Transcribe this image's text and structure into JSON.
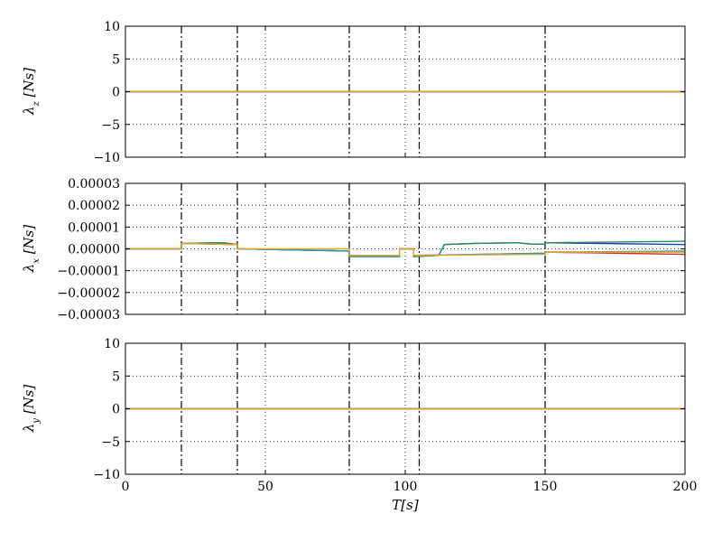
{
  "chart_data": [
    {
      "type": "line",
      "ylabel": "λz [Ns]",
      "ylabel_main": "λ",
      "ylabel_sub": "z",
      "ylabel_unit": "[Ns]",
      "xlim": [
        0,
        200
      ],
      "ylim": [
        -10,
        10
      ],
      "yticks": [
        "10",
        "5",
        "0",
        "−5",
        "−10"
      ],
      "grid": true,
      "event_lines": [
        20,
        40,
        80,
        105,
        150
      ],
      "series": [
        {
          "color": "#1f3fbf",
          "x": [
            0,
            200
          ],
          "y": [
            0,
            0
          ]
        },
        {
          "color": "#2e8b57",
          "x": [
            0,
            200
          ],
          "y": [
            0,
            0
          ]
        },
        {
          "color": "#d62728",
          "x": [
            0,
            200
          ],
          "y": [
            0,
            0
          ]
        },
        {
          "color": "#17a2b8",
          "x": [
            0,
            200
          ],
          "y": [
            0,
            0
          ]
        },
        {
          "color": "#e6a32c",
          "x": [
            0,
            200
          ],
          "y": [
            0,
            0
          ]
        }
      ]
    },
    {
      "type": "line",
      "ylabel": "λx [Ns]",
      "ylabel_main": "λ",
      "ylabel_sub": "x",
      "ylabel_unit": "[Ns]",
      "xlim": [
        0,
        200
      ],
      "ylim": [
        -3e-05,
        3e-05
      ],
      "yticks": [
        "0.00003",
        "0.00002",
        "0.00001",
        "0.00000",
        "−0.00001",
        "−0.00002",
        "−0.00003"
      ],
      "grid": true,
      "event_lines": [
        20,
        40,
        80,
        105,
        150
      ],
      "series": [
        {
          "color": "#1f3fbf",
          "x": [
            0,
            20,
            20,
            35,
            40,
            40,
            80,
            80,
            98,
            98,
            103,
            103,
            112,
            114,
            125,
            140,
            145,
            150,
            150,
            200
          ],
          "y": [
            0,
            0,
            2.5e-06,
            2.8e-06,
            2e-06,
            0,
            -1e-06,
            -3.5e-06,
            -3.5e-06,
            0,
            0,
            -3.5e-06,
            -3e-06,
            2e-06,
            2.5e-06,
            2.8e-06,
            2.2e-06,
            2.2e-06,
            2.8e-06,
            2e-06
          ]
        },
        {
          "color": "#2e8b57",
          "x": [
            0,
            20,
            20,
            35,
            40,
            40,
            80,
            80,
            98,
            98,
            103,
            103,
            112,
            114,
            125,
            140,
            145,
            150,
            150,
            200
          ],
          "y": [
            0,
            0,
            2.5e-06,
            2.8e-06,
            2e-06,
            0,
            -1e-06,
            -3.5e-06,
            -3.5e-06,
            0,
            0,
            -3.5e-06,
            -3e-06,
            2e-06,
            2.5e-06,
            2.8e-06,
            2.2e-06,
            2.2e-06,
            2.8e-06,
            3.5e-06
          ]
        },
        {
          "color": "#d62728",
          "x": [
            0,
            20,
            20,
            40,
            40,
            80,
            80,
            98,
            98,
            103,
            103,
            150,
            150,
            200
          ],
          "y": [
            0,
            0,
            2.5e-06,
            2e-06,
            0,
            -1e-06,
            -3.5e-06,
            -3.5e-06,
            0,
            0,
            -3e-06,
            -2e-06,
            -1.5e-06,
            -2.5e-06
          ]
        },
        {
          "color": "#17a2b8",
          "x": [
            0,
            20,
            20,
            40,
            40,
            80,
            80,
            98,
            98,
            103,
            103,
            150,
            150,
            200
          ],
          "y": [
            0,
            0,
            2.5e-06,
            2e-06,
            0,
            -1e-06,
            -3.5e-06,
            -3.5e-06,
            0,
            0,
            -3e-06,
            -2e-06,
            -1.5e-06,
            -1e-06
          ]
        },
        {
          "color": "#e6a32c",
          "x": [
            0,
            20,
            20,
            40,
            40,
            80,
            80,
            98,
            98,
            103,
            103,
            150,
            150,
            200
          ],
          "y": [
            0,
            0,
            2.5e-06,
            2e-06,
            0,
            0,
            -3e-06,
            -3e-06,
            0,
            0,
            -3e-06,
            -2.5e-06,
            -1.5e-06,
            -1.5e-06
          ]
        }
      ]
    },
    {
      "type": "line",
      "ylabel": "λy [Ns]",
      "ylabel_main": "λ",
      "ylabel_sub": "y",
      "ylabel_unit": "[Ns]",
      "xlabel": "T[s]",
      "xlabel_main": "T",
      "xlabel_unit": "[s]",
      "xlim": [
        0,
        200
      ],
      "ylim": [
        -10,
        10
      ],
      "xticks": [
        "0",
        "50",
        "100",
        "150",
        "200"
      ],
      "yticks": [
        "10",
        "5",
        "0",
        "−5",
        "−10"
      ],
      "grid": true,
      "event_lines": [
        20,
        40,
        80,
        105,
        150
      ],
      "series": [
        {
          "color": "#1f3fbf",
          "x": [
            0,
            200
          ],
          "y": [
            0,
            0
          ]
        },
        {
          "color": "#2e8b57",
          "x": [
            0,
            200
          ],
          "y": [
            0,
            0
          ]
        },
        {
          "color": "#d62728",
          "x": [
            0,
            200
          ],
          "y": [
            0,
            0
          ]
        },
        {
          "color": "#17a2b8",
          "x": [
            0,
            200
          ],
          "y": [
            0,
            0
          ]
        },
        {
          "color": "#e6a32c",
          "x": [
            0,
            200
          ],
          "y": [
            0,
            0
          ]
        }
      ]
    }
  ]
}
